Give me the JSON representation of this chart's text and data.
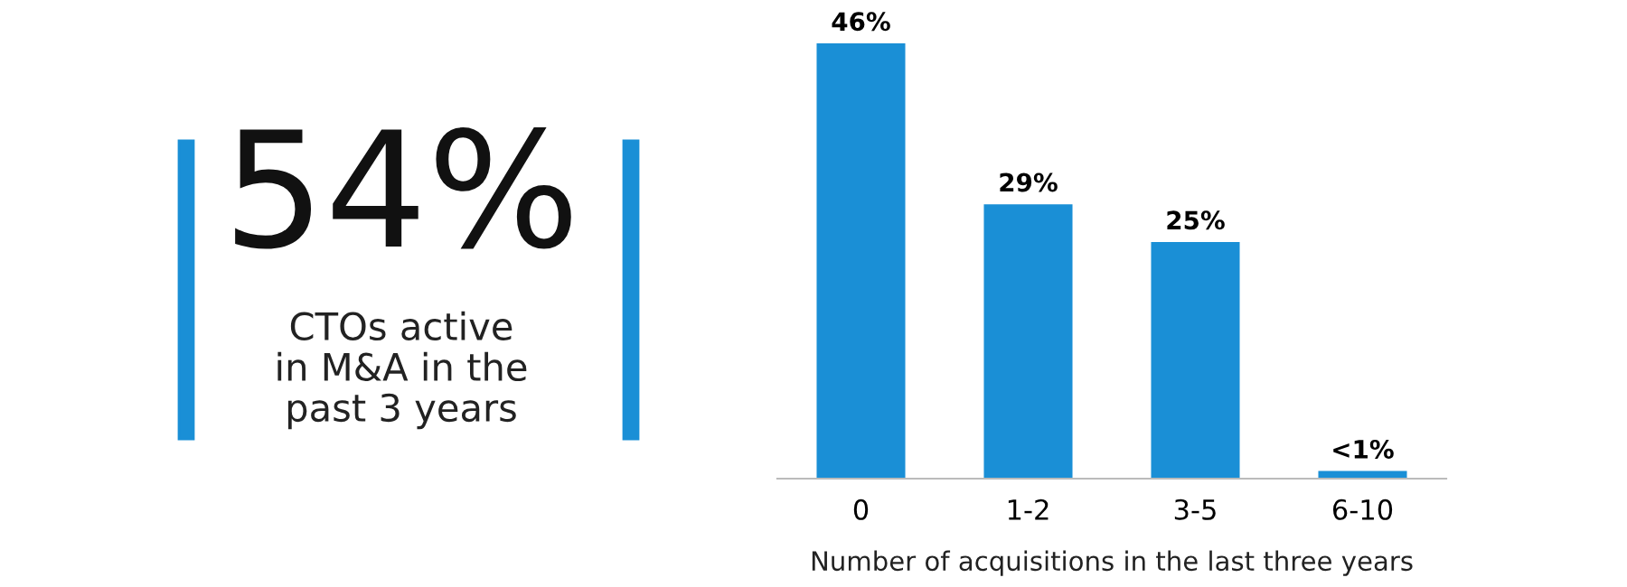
{
  "chart_data": [
    {
      "type": "other",
      "title": "54%",
      "annotations": [
        "CTOs active\nin M&A in the\npast 3 years"
      ]
    },
    {
      "type": "bar",
      "xlabel": "Number of acquisitions in the last three years",
      "categories": [
        "0",
        "1-2",
        "3-5",
        "6-10"
      ],
      "values": [
        46,
        29,
        25,
        0.8
      ],
      "value_labels": [
        "46%",
        "29%",
        "25%",
        "<1%"
      ],
      "color": "#1a8fd6",
      "grid": false,
      "legend": false
    }
  ]
}
